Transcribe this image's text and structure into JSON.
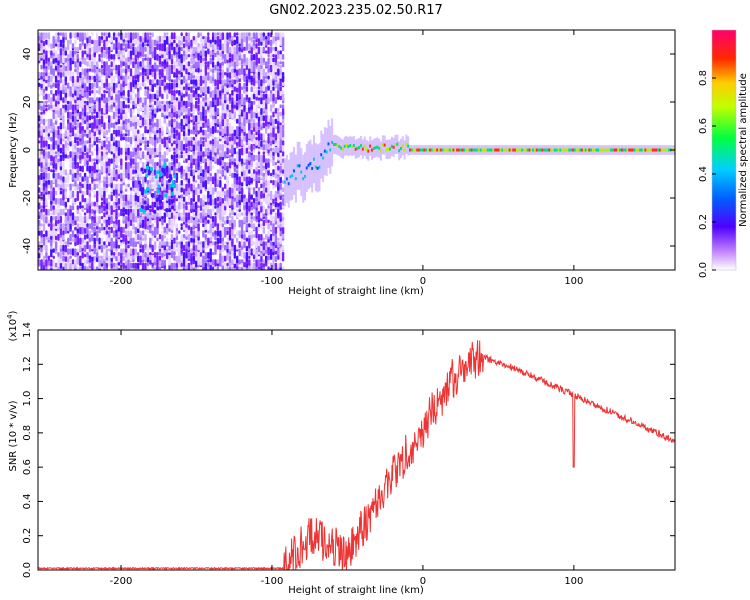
{
  "title": "GN02.2023.235.02.50.R17",
  "colors": {
    "trace": "#ee3333",
    "scatter_palette": [
      "#ffffff",
      "#e8d8ff",
      "#c8a8ff",
      "#a070ff",
      "#7a20ff",
      "#4a10ff",
      "#0050ff",
      "#00c8e0",
      "#00e070",
      "#b0f000",
      "#ffd000",
      "#ff3000",
      "#ff0060"
    ]
  },
  "chart_data": [
    {
      "type": "heatmap",
      "xlabel": "Height of straight line (km)",
      "ylabel": "Frequency (Hz)",
      "xlim": [
        -255,
        167
      ],
      "ylim": [
        -50,
        50
      ],
      "xticks": [
        -200,
        -100,
        0,
        100
      ],
      "yticks": [
        -40,
        -20,
        0,
        20,
        40
      ],
      "noise_until_km": -92,
      "signal_band": {
        "center_hz": 0,
        "max_amplitude": 1.0,
        "start_km": -92
      },
      "colorbar": {
        "label": "Normalized spectral amplitude",
        "range": [
          0.0,
          1.0
        ],
        "ticks": [
          "0.0",
          "0.2",
          "0.4",
          "0.6",
          "0.8"
        ]
      }
    },
    {
      "type": "line",
      "xlabel": "Height of straight line (km)",
      "ylabel": "SNR (10 * v/v)",
      "y_multiplier": "(x10",
      "y_multiplier_exp": "4",
      "y_multiplier_close": ")",
      "xlim": [
        -255,
        167
      ],
      "ylim": [
        0,
        1.4
      ],
      "xticks": [
        -200,
        -100,
        0,
        100
      ],
      "yticks": [
        "0.0",
        "0.2",
        "0.4",
        "0.6",
        "0.8",
        "1.0",
        "1.2",
        "1.4"
      ],
      "series": [
        {
          "x": [
            -255,
            -200,
            -150,
            -100,
            -92,
            -75,
            -60,
            -50,
            -40,
            -30,
            -20,
            -10,
            0,
            10,
            20,
            30,
            40,
            50,
            60,
            70,
            80,
            90,
            100,
            110,
            120,
            130,
            140,
            150,
            160,
            167
          ],
          "y": [
            0.01,
            0.01,
            0.01,
            0.01,
            0.01,
            0.2,
            0.15,
            0.08,
            0.25,
            0.4,
            0.55,
            0.7,
            0.82,
            0.98,
            1.12,
            1.2,
            1.24,
            1.21,
            1.18,
            1.14,
            1.1,
            1.06,
            1.02,
            0.98,
            0.94,
            0.9,
            0.86,
            0.82,
            0.78,
            0.75
          ]
        }
      ]
    }
  ]
}
